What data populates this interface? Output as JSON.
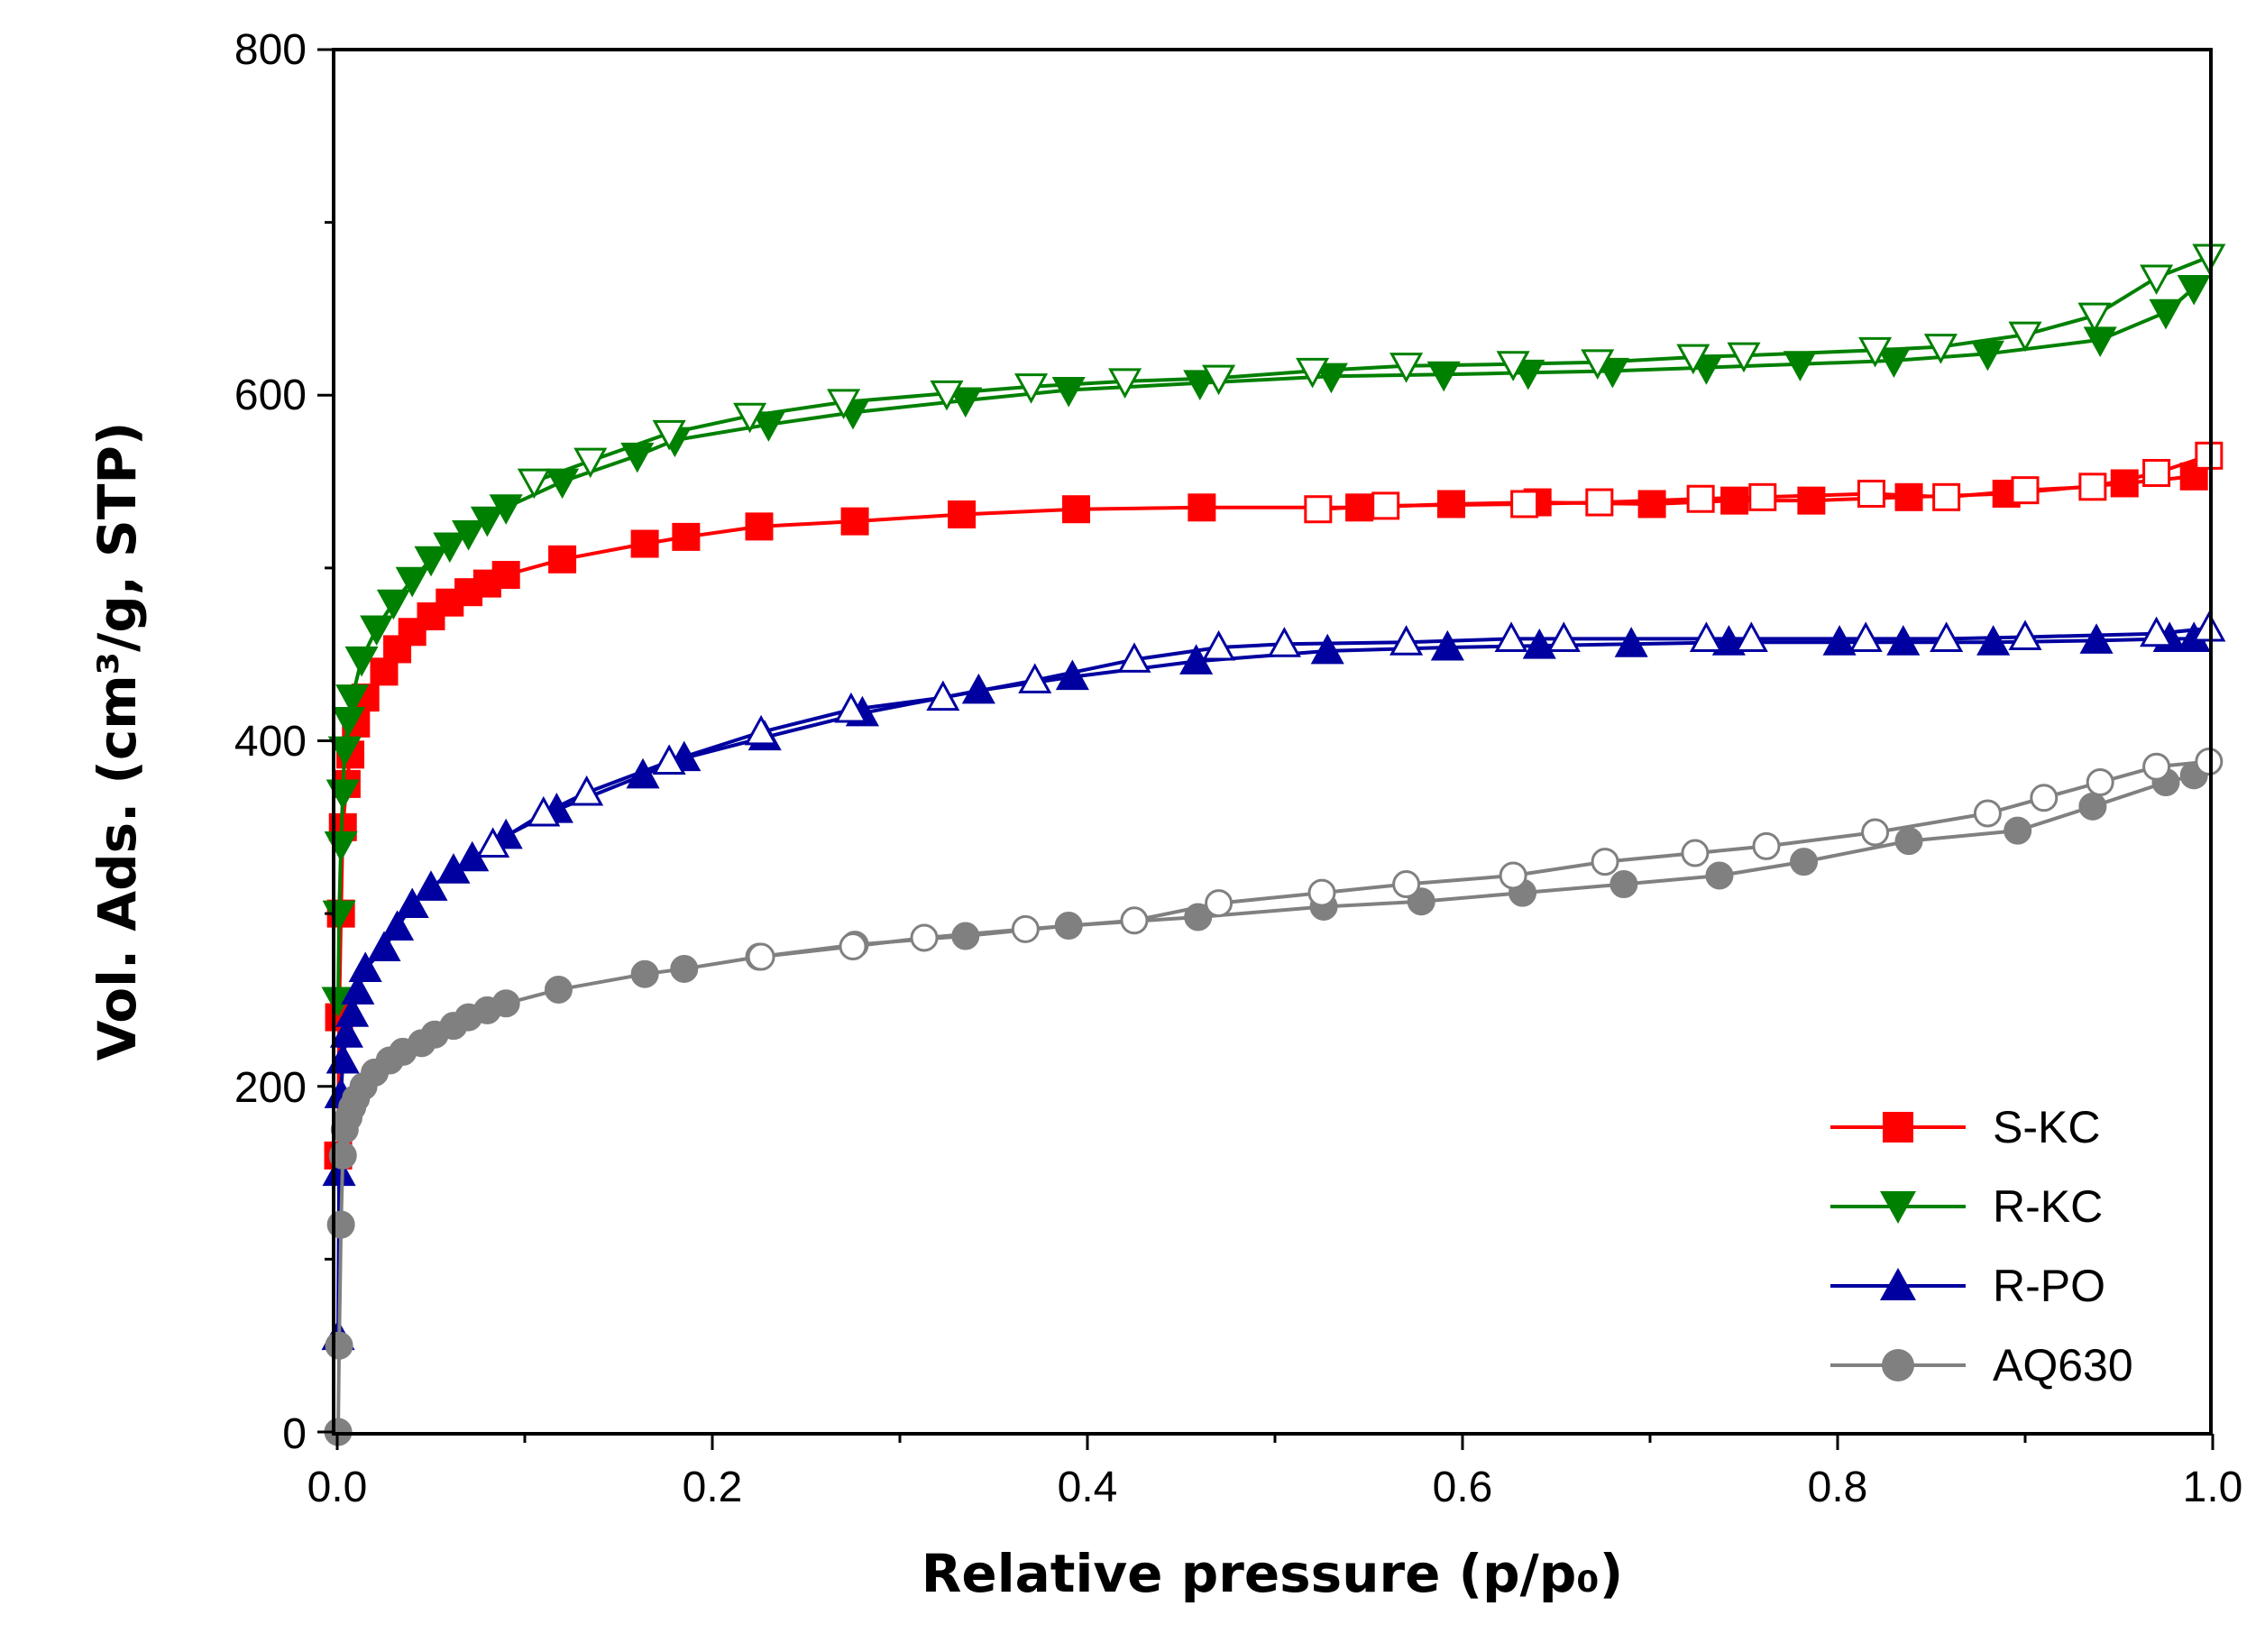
{
  "chart_data": {
    "type": "line",
    "title": "",
    "xlabel": "Relative pressure (p/p₀)",
    "ylabel": "Vol. Ads. (cm³/g, STP)",
    "xlim": [
      0,
      1
    ],
    "ylim": [
      0,
      800
    ],
    "x_ticks": [
      "0.0",
      "0.2",
      "0.4",
      "0.6",
      "0.8",
      "1.0"
    ],
    "y_ticks": [
      "0",
      "200",
      "400",
      "600",
      "800"
    ],
    "grid": false,
    "legend_position": "bottom-right",
    "series": [
      {
        "name": "S-KC",
        "color": "#ff0000",
        "marker": "square",
        "adsorption": {
          "x": [
            0.0005,
            0.001,
            0.002,
            0.003,
            0.005,
            0.007,
            0.01,
            0.015,
            0.025,
            0.032,
            0.04,
            0.05,
            0.06,
            0.07,
            0.08,
            0.09,
            0.12,
            0.164,
            0.186,
            0.225,
            0.276,
            0.333,
            0.394,
            0.461,
            0.545,
            0.594,
            0.64,
            0.701,
            0.745,
            0.786,
            0.838,
            0.89,
            0.953,
            0.99
          ],
          "y": [
            160,
            240,
            300,
            350,
            375,
            392,
            410,
            425,
            440,
            453,
            463,
            472,
            480,
            486,
            491,
            496,
            505,
            514,
            518,
            524,
            527,
            531,
            534,
            535,
            535,
            537,
            538,
            537,
            539,
            539,
            541,
            543,
            549,
            553
          ]
        },
        "desorption": {
          "x": [
            0.998,
            0.97,
            0.936,
            0.9,
            0.858,
            0.818,
            0.76,
            0.727,
            0.673,
            0.633,
            0.559,
            0.523
          ],
          "y": [
            565,
            555,
            547,
            545,
            541,
            543,
            541,
            540,
            538,
            537,
            536,
            534
          ]
        }
      },
      {
        "name": "R-KC",
        "color": "#008000",
        "marker": "triangle-down",
        "adsorption": {
          "x": [
            0.0005,
            0.001,
            0.002,
            0.003,
            0.004,
            0.006,
            0.008,
            0.013,
            0.021,
            0.03,
            0.04,
            0.05,
            0.06,
            0.07,
            0.08,
            0.09,
            0.12,
            0.16,
            0.18,
            0.23,
            0.275,
            0.335,
            0.39,
            0.46,
            0.53,
            0.59,
            0.635,
            0.68,
            0.73,
            0.78,
            0.83,
            0.88,
            0.94,
            0.975,
            0.99
          ],
          "y": [
            250,
            300,
            340,
            370,
            395,
            412,
            425,
            447,
            465,
            480,
            493,
            505,
            513,
            520,
            528,
            535,
            550,
            565,
            574,
            583,
            590,
            597,
            603,
            607,
            611,
            612,
            613,
            614,
            616,
            618,
            620,
            624,
            632,
            648,
            662
          ]
        },
        "desorption": {
          "x": [
            0.998,
            0.97,
            0.937,
            0.9,
            0.855,
            0.82,
            0.75,
            0.723,
            0.672,
            0.627,
            0.57,
            0.52,
            0.47,
            0.42,
            0.37,
            0.325,
            0.27,
            0.22,
            0.177,
            0.135,
            0.105
          ],
          "y": [
            680,
            668,
            646,
            635,
            628,
            626,
            623,
            622,
            619,
            618,
            617,
            614,
            610,
            608,
            605,
            601,
            596,
            588,
            578,
            562,
            550
          ]
        }
      },
      {
        "name": "R-PO",
        "color": "#0000a0",
        "marker": "triangle-up",
        "adsorption": {
          "x": [
            0.0005,
            0.001,
            0.002,
            0.003,
            0.005,
            0.008,
            0.011,
            0.015,
            0.025,
            0.032,
            0.04,
            0.05,
            0.062,
            0.072,
            0.09,
            0.117,
            0.163,
            0.185,
            0.228,
            0.28,
            0.342,
            0.392,
            0.458,
            0.528,
            0.592,
            0.641,
            0.69,
            0.742,
            0.801,
            0.835,
            0.883,
            0.938,
            0.977,
            0.99
          ],
          "y": [
            55,
            150,
            195,
            215,
            230,
            242,
            255,
            268,
            280,
            292,
            305,
            315,
            325,
            332,
            345,
            360,
            380,
            390,
            402,
            416,
            429,
            437,
            446,
            452,
            454,
            455,
            456,
            457,
            457,
            457,
            457,
            458,
            459,
            459
          ]
        },
        "desorption": {
          "x": [
            0.998,
            0.97,
            0.9,
            0.858,
            0.815,
            0.754,
            0.73,
            0.654,
            0.626,
            0.57,
            0.505,
            0.47,
            0.425,
            0.372,
            0.323,
            0.274,
            0.226,
            0.177,
            0.133,
            0.11,
            0.083
          ],
          "y": [
            465,
            462,
            460,
            459,
            459,
            459,
            459,
            459,
            459,
            457,
            456,
            454,
            447,
            435,
            425,
            418,
            405,
            388,
            370,
            358,
            340
          ]
        }
      },
      {
        "name": "AQ630",
        "color": "#808080",
        "marker": "circle",
        "adsorption": {
          "x": [
            0.0005,
            0.001,
            0.002,
            0.003,
            0.004,
            0.006,
            0.008,
            0.01,
            0.014,
            0.02,
            0.028,
            0.035,
            0.045,
            0.052,
            0.062,
            0.07,
            0.08,
            0.09,
            0.118,
            0.164,
            0.185,
            0.225,
            0.276,
            0.335,
            0.39,
            0.459,
            0.526,
            0.578,
            0.632,
            0.686,
            0.737,
            0.782,
            0.838,
            0.896,
            0.936,
            0.975,
            0.99
          ],
          "y": [
            0,
            50,
            120,
            160,
            175,
            182,
            188,
            193,
            200,
            208,
            215,
            220,
            225,
            230,
            235,
            240,
            244,
            248,
            256,
            265,
            268,
            275,
            282,
            287,
            293,
            298,
            304,
            307,
            312,
            317,
            322,
            330,
            342,
            348,
            362,
            376,
            380
          ]
        },
        "desorption": {
          "x": [
            0.998,
            0.97,
            0.94,
            0.91,
            0.88,
            0.82,
            0.762,
            0.724,
            0.676,
            0.627,
            0.57,
            0.525,
            0.47,
            0.425,
            0.367,
            0.313,
            0.275,
            0.226
          ],
          "y": [
            388,
            385,
            376,
            367,
            358,
            347,
            339,
            335,
            330,
            322,
            317,
            312,
            306,
            296,
            291,
            286,
            281,
            275
          ]
        }
      }
    ]
  }
}
